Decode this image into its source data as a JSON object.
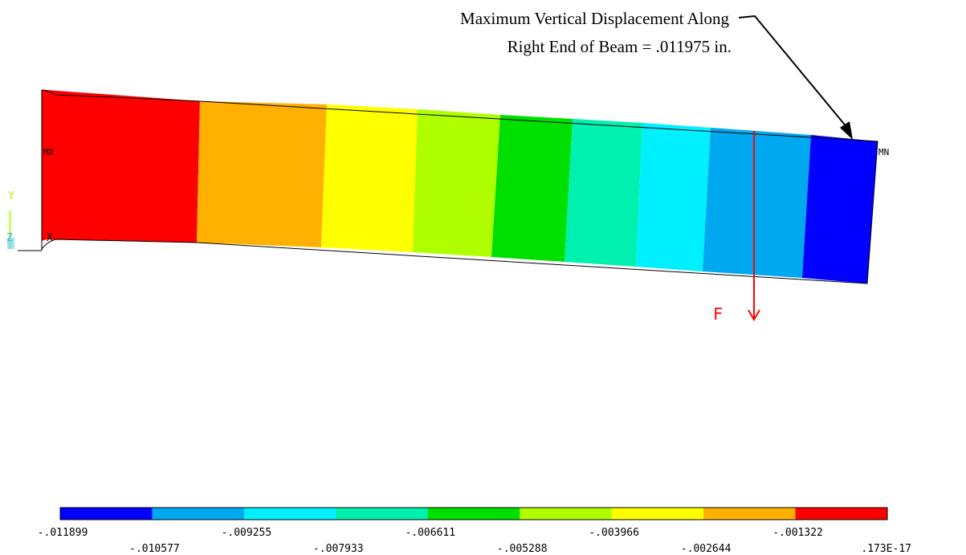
{
  "annotation": {
    "line1": "Maximum Vertical  Displacement Along",
    "line2": "Right  End of Beam = .011975 in."
  },
  "markers": {
    "max": "MX",
    "min": "MN",
    "force": "F"
  },
  "triad": {
    "y": "Y",
    "z": "Z",
    "x": "X"
  },
  "legend": {
    "bands": [
      {
        "color": "#0000ff"
      },
      {
        "color": "#00a8f0"
      },
      {
        "color": "#00f0ff"
      },
      {
        "color": "#00f0b0"
      },
      {
        "color": "#00e000"
      },
      {
        "color": "#b0ff00"
      },
      {
        "color": "#ffff00"
      },
      {
        "color": "#ffb000"
      },
      {
        "color": "#ff0000"
      }
    ],
    "labels": [
      "-.011899",
      "-.010577",
      "-.009255",
      "-.007933",
      "-.006611",
      "-.005288",
      "-.003966",
      "-.002644",
      "-.001322",
      ".173E-17"
    ]
  },
  "colors": {
    "force_arrow": "#ff0000",
    "annotation_arrow": "#000000"
  }
}
